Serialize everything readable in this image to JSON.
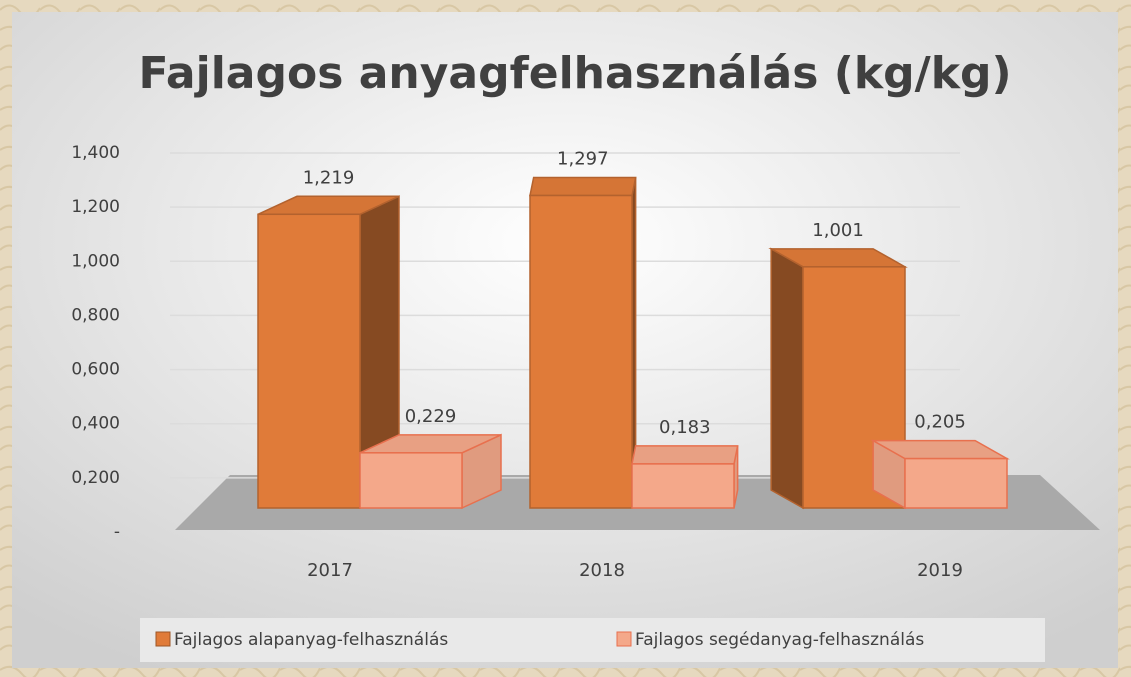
{
  "chart_data": {
    "type": "bar3d",
    "title": "Fajlagos anyagfelhasználás (kg/kg)",
    "categories": [
      "2017",
      "2018",
      "2019"
    ],
    "series": [
      {
        "name": "Fajlagos alapanyag-felhasználás",
        "color": "#e07b39",
        "values": [
          1.219,
          1.297,
          1.001
        ],
        "value_labels": [
          "1,219",
          "1,297",
          "1,001"
        ]
      },
      {
        "name": "Fajlagos segédanyag-felhasználás",
        "color": "#f4a88a",
        "values": [
          0.229,
          0.183,
          0.205
        ],
        "value_labels": [
          "0,229",
          "0,183",
          "0,205"
        ]
      }
    ],
    "ylim": [
      0,
      1.4
    ],
    "yticks": [
      {
        "value": 0,
        "label": "-"
      },
      {
        "value": 0.2,
        "label": "0,200"
      },
      {
        "value": 0.4,
        "label": "0,400"
      },
      {
        "value": 0.6,
        "label": "0,600"
      },
      {
        "value": 0.8,
        "label": "0,800"
      },
      {
        "value": 1.0,
        "label": "1,000"
      },
      {
        "value": 1.2,
        "label": "1,200"
      },
      {
        "value": 1.4,
        "label": "1,400"
      }
    ],
    "grid": true,
    "legend": "bottom"
  }
}
